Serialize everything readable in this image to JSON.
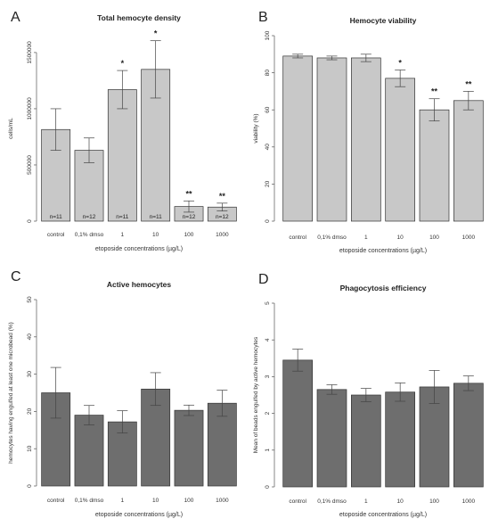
{
  "chart_data": [
    {
      "panel": "A",
      "type": "bar",
      "title": "Total hemocyte density",
      "xlabel": "etoposide concentrations (µg/L)",
      "ylabel": "cells/mL",
      "categories": [
        "control",
        "0,1% dmso",
        "1",
        "10",
        "100",
        "1000"
      ],
      "values": [
        815000,
        630000,
        1170000,
        1350000,
        130000,
        125000
      ],
      "errors": [
        185000,
        110000,
        170000,
        255000,
        50000,
        35000
      ],
      "sample_sizes": [
        "n=11",
        "n=12",
        "n=11",
        "n=11",
        "n=12",
        "n=12"
      ],
      "significance": [
        "",
        "",
        "*",
        "*",
        "**",
        "**"
      ],
      "ylim": [
        0,
        1650000
      ],
      "yticks": [
        0,
        500000,
        1000000,
        1500000
      ],
      "ytick_labels": [
        "0",
        "500000",
        "1000000",
        "1500000"
      ],
      "bar_color": "#c8c8c8"
    },
    {
      "panel": "B",
      "type": "bar",
      "title": "Hemocyte viability",
      "xlabel": "etoposide concentrations (µg/L)",
      "ylabel": "viability (%)",
      "categories": [
        "control",
        "0,1% dmso",
        "1",
        "10",
        "100",
        "1000"
      ],
      "values": [
        89,
        88,
        88,
        77,
        60,
        65
      ],
      "errors": [
        1,
        1,
        2,
        4.5,
        6,
        5
      ],
      "significance": [
        "",
        "",
        "",
        "*",
        "**",
        "**"
      ],
      "ylim": [
        0,
        100
      ],
      "yticks": [
        0,
        20,
        40,
        60,
        80,
        100
      ],
      "ytick_labels": [
        "0",
        "20",
        "40",
        "60",
        "80",
        "100"
      ],
      "bar_color": "#c8c8c8"
    },
    {
      "panel": "C",
      "type": "bar",
      "title": "Active hemocytes",
      "xlabel": "etoposide concentrations (µg/L)",
      "ylabel": "hemocytes having engulfed at least one microbead (%)",
      "categories": [
        "control",
        "0,1% dmso",
        "1",
        "10",
        "100",
        "1000"
      ],
      "values": [
        25,
        19,
        17.2,
        26,
        20.3,
        22.2
      ],
      "errors": [
        6.8,
        2.6,
        3,
        4.4,
        1.4,
        3.5
      ],
      "significance": [
        "",
        "",
        "",
        "",
        "",
        ""
      ],
      "ylim": [
        0,
        50
      ],
      "yticks": [
        0,
        10,
        20,
        30,
        40,
        50
      ],
      "ytick_labels": [
        "0",
        "10",
        "20",
        "30",
        "40",
        "50"
      ],
      "bar_color": "#6e6e6e"
    },
    {
      "panel": "D",
      "type": "bar",
      "title": "Phagocytosis efficiency",
      "xlabel": "etoposide concentrations (µg/L)",
      "ylabel": "Mean of beads engulfed by active hemocytes",
      "categories": [
        "control",
        "0,1% dmso",
        "1",
        "10",
        "100",
        "1000"
      ],
      "values": [
        3.45,
        2.65,
        2.5,
        2.58,
        2.72,
        2.82
      ],
      "errors": [
        0.3,
        0.13,
        0.18,
        0.25,
        0.45,
        0.2
      ],
      "significance": [
        "",
        "",
        "",
        "",
        "",
        ""
      ],
      "ylim": [
        0,
        5
      ],
      "yticks": [
        0,
        1,
        2,
        3,
        4,
        5
      ],
      "ytick_labels": [
        "0",
        "1",
        "2",
        "3",
        "4",
        "5"
      ],
      "bar_color": "#6e6e6e"
    }
  ]
}
